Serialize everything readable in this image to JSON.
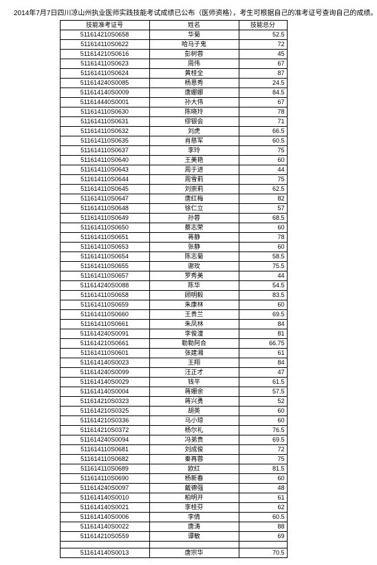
{
  "title": "2014年7月7日四川凉山州执业医师实践技能考试成绩已公布（医师资格），考生可根据自己的准考证号查询自己的成绩。",
  "headers": [
    "技能准考证号",
    "姓名",
    "技能总分"
  ],
  "rows": [
    [
      "511614210S0658",
      "华菊",
      "52.5"
    ],
    [
      "511614110S0622",
      "哈马子鬼",
      "72"
    ],
    [
      "511614210S0616",
      "彭树蓉",
      "45"
    ],
    [
      "511614110S0623",
      "周伟",
      "67"
    ],
    [
      "511614110S0624",
      "黄桂全",
      "87"
    ],
    [
      "511614240S0085",
      "杨恩秀",
      "24.5"
    ],
    [
      "511614140S0009",
      "唐娜娜",
      "84.5"
    ],
    [
      "511614440S0001",
      "孙大伟",
      "67"
    ],
    [
      "511614110S0630",
      "陈晓玲",
      "78"
    ],
    [
      "511614110S0631",
      "缪银会",
      "71"
    ],
    [
      "511614110S0632",
      "刘虎",
      "66.5"
    ],
    [
      "511614110S0635",
      "肖慈军",
      "60.5"
    ],
    [
      "511614110S0637",
      "李玲",
      "75"
    ],
    [
      "511614110S0640",
      "王美艳",
      "60"
    ],
    [
      "511614110S0643",
      "周于进",
      "44"
    ],
    [
      "511614110S0644",
      "周雪莉",
      "75"
    ],
    [
      "511614110S0645",
      "刘崇莉",
      "62.5"
    ],
    [
      "511614110S0647",
      "唐红梅",
      "82"
    ],
    [
      "511614110S0648",
      "徐仁立",
      "57"
    ],
    [
      "511614110S0649",
      "孙蓉",
      "68.5"
    ],
    [
      "511614110S0650",
      "蔡志荣",
      "60"
    ],
    [
      "511614110S0651",
      "蒋静",
      "78"
    ],
    [
      "511614110S0653",
      "张静",
      "60"
    ],
    [
      "511614110S0654",
      "陈志菊",
      "58.5"
    ],
    [
      "511614110S0655",
      "谢玫",
      "75.5"
    ],
    [
      "511614110S0657",
      "罗秀美",
      "44"
    ],
    [
      "511614240S0088",
      "陈华",
      "54.5"
    ],
    [
      "511614110S0658",
      "顾明毅",
      "83.5"
    ],
    [
      "511614110S0659",
      "朱康林",
      "60"
    ],
    [
      "511614110S0660",
      "王贵兰",
      "69.5"
    ],
    [
      "511614110S0661",
      "朱凤林",
      "84"
    ],
    [
      "511614240S0091",
      "李俊潼",
      "81"
    ],
    [
      "511614210S0661",
      "勒勒阿合",
      "66.75"
    ],
    [
      "511614110S0601",
      "张建湘",
      "61"
    ],
    [
      "511614140S0023",
      "王翔",
      "84"
    ],
    [
      "511614240S0099",
      "汪正才",
      "47"
    ],
    [
      "511614140S0029",
      "钱平",
      "61.5"
    ],
    [
      "511614140S0004",
      "蒋姗余",
      "57.5"
    ],
    [
      "511614210S0323",
      "蒋兴勇",
      "52"
    ],
    [
      "511614210S0325",
      "胡英",
      "60"
    ],
    [
      "511614210S0336",
      "马小琼",
      "60"
    ],
    [
      "511614210S0372",
      "杨尔礼",
      "76.5"
    ],
    [
      "511614240S0094",
      "冯弟贵",
      "69.5"
    ],
    [
      "511614110S0681",
      "刘成俊",
      "72"
    ],
    [
      "511614110S0682",
      "秦再蓉",
      "75"
    ],
    [
      "511614110S0689",
      "欧红",
      "81.5"
    ],
    [
      "511614110S0690",
      "杨新春",
      "60"
    ],
    [
      "511614240S0097",
      "戴德强",
      "48"
    ],
    [
      "511614140S0010",
      "柏明开",
      "61"
    ],
    [
      "511614140S0021",
      "李桂芬",
      "62"
    ],
    [
      "511614140S0006",
      "李倩",
      "60.5"
    ],
    [
      "511614140S0022",
      "唐涛",
      "88"
    ],
    [
      "511614210S0559",
      "谭敏",
      "69"
    ]
  ],
  "lastRow": [
    "511614140S0013",
    "唐宗华",
    "70.5"
  ]
}
